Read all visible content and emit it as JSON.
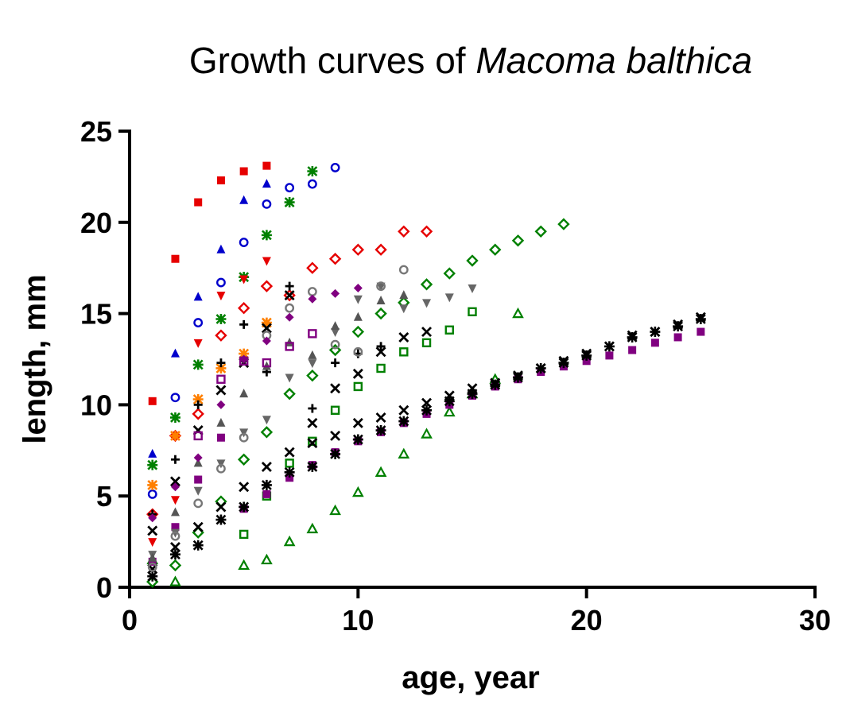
{
  "chart_data": {
    "type": "scatter",
    "title": "Growth curves of ",
    "title_italic": "Macoma balthica",
    "xlabel": "age, year",
    "ylabel": "length, mm",
    "xlim": [
      0,
      30
    ],
    "ylim": [
      0,
      25
    ],
    "xticks": [
      0,
      10,
      20,
      30
    ],
    "yticks": [
      0,
      5,
      10,
      15,
      20,
      25
    ],
    "grid": false,
    "legend": "none",
    "series": [
      {
        "color": "#e60000",
        "marker": "square-filled",
        "points": [
          [
            1,
            10.2
          ],
          [
            2,
            18
          ],
          [
            3,
            21.1
          ],
          [
            4,
            22.3
          ],
          [
            5,
            22.8
          ],
          [
            6,
            23.1
          ]
        ]
      },
      {
        "color": "#0000cc",
        "marker": "triangle-filled",
        "points": [
          [
            1,
            7.3
          ],
          [
            2,
            12.8
          ],
          [
            3,
            15.9
          ],
          [
            4,
            18.5
          ],
          [
            5,
            21.2
          ],
          [
            6,
            22.1
          ]
        ]
      },
      {
        "color": "#0000cc",
        "marker": "circle-open",
        "points": [
          [
            1,
            5.1
          ],
          [
            2,
            10.4
          ],
          [
            3,
            14.5
          ],
          [
            4,
            16.7
          ],
          [
            5,
            18.9
          ],
          [
            6,
            21
          ],
          [
            7,
            21.9
          ],
          [
            8,
            22.1
          ],
          [
            9,
            23
          ]
        ]
      },
      {
        "color": "#008000",
        "marker": "star",
        "points": [
          [
            1,
            6.7
          ],
          [
            2,
            9.3
          ],
          [
            3,
            12.2
          ],
          [
            4,
            14.7
          ],
          [
            5,
            17
          ],
          [
            6,
            19.3
          ],
          [
            7,
            21.1
          ],
          [
            8,
            22.8
          ]
        ]
      },
      {
        "color": "#e60000",
        "marker": "diamond-open",
        "points": [
          [
            1,
            4
          ],
          [
            2,
            8.3
          ],
          [
            3,
            9.5
          ],
          [
            4,
            13.8
          ],
          [
            5,
            15.3
          ],
          [
            6,
            16.5
          ],
          [
            7,
            16
          ],
          [
            8,
            17.5
          ],
          [
            9,
            18
          ],
          [
            10,
            18.5
          ],
          [
            11,
            18.5
          ],
          [
            12,
            19.5
          ],
          [
            13,
            19.5
          ]
        ]
      },
      {
        "color": "#008000",
        "marker": "diamond-open",
        "points": [
          [
            1,
            0.3
          ],
          [
            2,
            1.2
          ],
          [
            3,
            3
          ],
          [
            4,
            4.7
          ],
          [
            5,
            7
          ],
          [
            6,
            8.5
          ],
          [
            7,
            10.6
          ],
          [
            8,
            11.6
          ],
          [
            9,
            13
          ],
          [
            10,
            14
          ],
          [
            11,
            15
          ],
          [
            12,
            15.6
          ],
          [
            13,
            16.6
          ],
          [
            14,
            17.2
          ],
          [
            15,
            17.9
          ],
          [
            16,
            18.5
          ],
          [
            17,
            19
          ],
          [
            18,
            19.5
          ],
          [
            19,
            19.9
          ]
        ]
      },
      {
        "color": "#e60000",
        "marker": "triangle-down",
        "points": [
          [
            1,
            2.5
          ],
          [
            2,
            4.8
          ],
          [
            3,
            13.4
          ],
          [
            4,
            16
          ],
          [
            5,
            16.9
          ],
          [
            6,
            17.9
          ]
        ]
      },
      {
        "color": "#ff7f00",
        "marker": "star",
        "points": [
          [
            1,
            5.6
          ],
          [
            2,
            8.3
          ],
          [
            3,
            10.3
          ],
          [
            4,
            12
          ],
          [
            5,
            12.8
          ],
          [
            6,
            14.5
          ]
        ]
      },
      {
        "color": "#008000",
        "marker": "square-open",
        "points": [
          [
            5,
            2.9
          ],
          [
            6,
            5
          ],
          [
            7,
            6.8
          ],
          [
            8,
            8
          ],
          [
            9,
            9.7
          ],
          [
            10,
            11
          ],
          [
            11,
            12
          ],
          [
            12,
            12.9
          ],
          [
            13,
            13.4
          ],
          [
            14,
            14.1
          ],
          [
            15,
            15.1
          ]
        ]
      },
      {
        "color": "#008000",
        "marker": "triangle-open",
        "points": [
          [
            1,
            1.5
          ],
          [
            2,
            0.3
          ],
          [
            5,
            1.2
          ],
          [
            6,
            1.5
          ],
          [
            7,
            2.5
          ],
          [
            8,
            3.2
          ],
          [
            9,
            4.2
          ],
          [
            10,
            5.2
          ],
          [
            11,
            6.3
          ],
          [
            12,
            7.3
          ],
          [
            13,
            8.4
          ],
          [
            14,
            9.6
          ],
          [
            15,
            10.6
          ],
          [
            16,
            11.4
          ],
          [
            17,
            15
          ]
        ]
      },
      {
        "color": "#800080",
        "marker": "square-filled",
        "points": [
          [
            1,
            1.4
          ],
          [
            2,
            3.3
          ],
          [
            3,
            5.9
          ],
          [
            4,
            8.2
          ],
          [
            5,
            4.3
          ],
          [
            6,
            5.1
          ],
          [
            7,
            6
          ],
          [
            8,
            6.7
          ],
          [
            9,
            7.4
          ],
          [
            10,
            8
          ],
          [
            11,
            8.5
          ],
          [
            12,
            9
          ],
          [
            13,
            9.5
          ],
          [
            14,
            10
          ],
          [
            15,
            10.5
          ],
          [
            16,
            11
          ],
          [
            17,
            11.4
          ],
          [
            18,
            11.8
          ],
          [
            19,
            12.1
          ],
          [
            20,
            12.4
          ],
          [
            21,
            12.7
          ],
          [
            22,
            13
          ],
          [
            23,
            13.4
          ],
          [
            24,
            13.7
          ],
          [
            25,
            14
          ]
        ]
      },
      {
        "color": "#000000",
        "marker": "star",
        "points": [
          [
            1,
            0.6
          ],
          [
            2,
            1.8
          ],
          [
            3,
            2.3
          ],
          [
            4,
            3.7
          ],
          [
            5,
            4.4
          ],
          [
            6,
            5.6
          ],
          [
            7,
            6.3
          ],
          [
            8,
            6.6
          ],
          [
            9,
            7.3
          ],
          [
            10,
            8.1
          ],
          [
            11,
            8.6
          ],
          [
            12,
            9.1
          ],
          [
            13,
            9.7
          ],
          [
            14,
            10.2
          ],
          [
            15,
            10.6
          ],
          [
            16,
            11.1
          ],
          [
            17,
            11.5
          ],
          [
            18,
            12
          ],
          [
            19,
            12.3
          ],
          [
            20,
            12.7
          ],
          [
            21,
            13.2
          ],
          [
            22,
            13.7
          ],
          [
            23,
            14
          ],
          [
            24,
            14.3
          ],
          [
            25,
            14.7
          ]
        ]
      },
      {
        "color": "#000000",
        "marker": "x",
        "points": [
          [
            1,
            3.1
          ],
          [
            2,
            5.8
          ],
          [
            3,
            8.6
          ],
          [
            4,
            10.8
          ],
          [
            5,
            12.3
          ],
          [
            6,
            14.2
          ],
          [
            7,
            16
          ],
          [
            8,
            7.9
          ],
          [
            9,
            8.3
          ],
          [
            10,
            9
          ],
          [
            11,
            9.3
          ],
          [
            12,
            9.7
          ],
          [
            13,
            10.1
          ],
          [
            14,
            10.5
          ],
          [
            15,
            10.9
          ],
          [
            16,
            11.2
          ],
          [
            17,
            11.6
          ],
          [
            18,
            12
          ],
          [
            19,
            12.4
          ],
          [
            20,
            12.8
          ],
          [
            21,
            13.2
          ],
          [
            22,
            13.8
          ],
          [
            23,
            14
          ],
          [
            24,
            14.4
          ],
          [
            25,
            14.8
          ]
        ]
      },
      {
        "color": "#000000",
        "marker": "plus",
        "points": [
          [
            1,
            4
          ],
          [
            2,
            7
          ],
          [
            3,
            10
          ],
          [
            4,
            12.3
          ],
          [
            5,
            14.4
          ],
          [
            6,
            11.8
          ],
          [
            7,
            16.5
          ],
          [
            8,
            9.8
          ],
          [
            9,
            12.3
          ],
          [
            10,
            12.8
          ],
          [
            11,
            13.2
          ]
        ]
      },
      {
        "color": "#000000",
        "marker": "x",
        "points": [
          [
            1,
            1
          ],
          [
            2,
            2.2
          ],
          [
            3,
            3.3
          ],
          [
            4,
            4.4
          ],
          [
            5,
            5.5
          ],
          [
            6,
            6.6
          ],
          [
            7,
            7.4
          ],
          [
            8,
            9
          ],
          [
            9,
            10.9
          ],
          [
            10,
            11.7
          ],
          [
            11,
            12.9
          ],
          [
            12,
            13.7
          ],
          [
            13,
            14
          ]
        ]
      },
      {
        "color": "#666666",
        "marker": "triangle-down",
        "points": [
          [
            1,
            1.8
          ],
          [
            2,
            3
          ],
          [
            3,
            5.3
          ],
          [
            4,
            6.8
          ],
          [
            5,
            8.5
          ],
          [
            6,
            9.2
          ],
          [
            7,
            11.5
          ],
          [
            8,
            12.3
          ],
          [
            9,
            14
          ],
          [
            10,
            15.8
          ],
          [
            11,
            16.5
          ],
          [
            12,
            15.3
          ],
          [
            13,
            15.6
          ],
          [
            14,
            15.9
          ],
          [
            15,
            16.4
          ]
        ]
      },
      {
        "color": "#555555",
        "marker": "triangle-filled",
        "points": [
          [
            1,
            1.6
          ],
          [
            2,
            4.1
          ],
          [
            3,
            6.8
          ],
          [
            4,
            9
          ],
          [
            5,
            10.6
          ],
          [
            6,
            12.1
          ],
          [
            7,
            13.4
          ],
          [
            8,
            12.7
          ],
          [
            9,
            14.3
          ],
          [
            10,
            14.8
          ],
          [
            11,
            15.7
          ],
          [
            12,
            16
          ]
        ]
      },
      {
        "color": "#777777",
        "marker": "circle-open",
        "points": [
          [
            1,
            1.1
          ],
          [
            2,
            2.8
          ],
          [
            3,
            4.6
          ],
          [
            4,
            6.5
          ],
          [
            5,
            8.2
          ],
          [
            6,
            13.8
          ],
          [
            7,
            15.3
          ],
          [
            8,
            16.2
          ],
          [
            9,
            13.3
          ],
          [
            10,
            12.9
          ],
          [
            11,
            16.5
          ],
          [
            12,
            17.4
          ]
        ]
      },
      {
        "color": "#800080",
        "marker": "diamond-filled",
        "points": [
          [
            1,
            3.8
          ],
          [
            2,
            5.5
          ],
          [
            3,
            7.1
          ],
          [
            4,
            10
          ],
          [
            5,
            12.5
          ],
          [
            6,
            13.5
          ],
          [
            7,
            14.8
          ],
          [
            8,
            15.8
          ],
          [
            9,
            16.1
          ],
          [
            10,
            16.4
          ]
        ]
      },
      {
        "color": "#800080",
        "marker": "square-open",
        "points": [
          [
            3,
            8.3
          ],
          [
            4,
            11.4
          ],
          [
            5,
            12.4
          ],
          [
            6,
            12.3
          ],
          [
            7,
            13.2
          ],
          [
            8,
            13.9
          ]
        ]
      }
    ]
  }
}
